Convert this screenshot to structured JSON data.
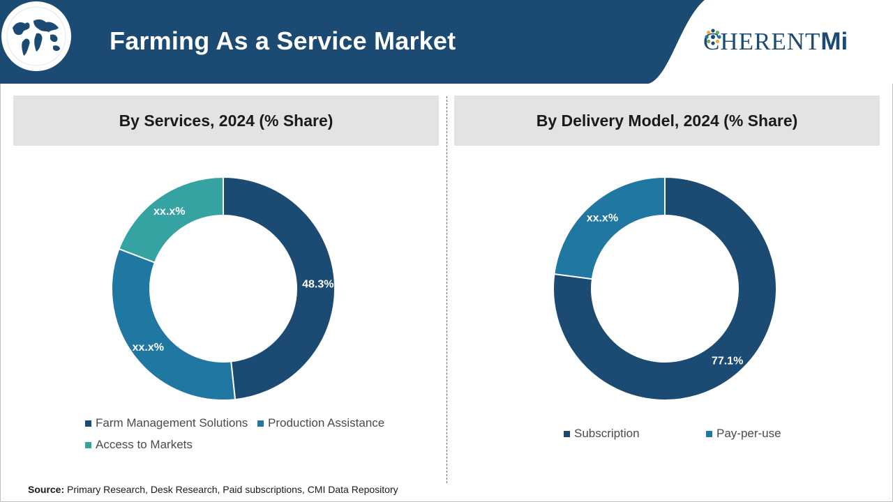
{
  "header": {
    "title": "Farming As a Service Market",
    "logo_main": "C",
    "logo_rest": "HERENT",
    "logo_suffix": "Mi",
    "colors": {
      "banner": "#1b4b72",
      "logo": "#1b4b72"
    }
  },
  "panels": [
    {
      "title": "By Services, 2024 (% Share)"
    },
    {
      "title": "By Delivery Model, 2024 (% Share)"
    }
  ],
  "chart_data": [
    {
      "type": "pie",
      "donut": true,
      "title": "By Services, 2024 (% Share)",
      "categories": [
        "Farm Management Solutions",
        "Production Assistance",
        "Access to Markets"
      ],
      "values": [
        48.3,
        32.5,
        19.2
      ],
      "labels": [
        "48.3%",
        "xx.x%",
        "xx.x%"
      ],
      "colors": [
        "#1b4b72",
        "#1f77a2",
        "#36a3a3"
      ],
      "legend": "bottom"
    },
    {
      "type": "pie",
      "donut": true,
      "title": "By Delivery Model, 2024 (% Share)",
      "categories": [
        "Subscription",
        "Pay-per-use"
      ],
      "values": [
        77.1,
        22.9
      ],
      "labels": [
        "77.1%",
        "xx.x%"
      ],
      "colors": [
        "#1b4b72",
        "#1f77a2"
      ],
      "legend": "bottom"
    }
  ],
  "source": {
    "label": "Source:",
    "text": "Primary Research, Desk Research, Paid subscriptions, CMI Data Repository"
  }
}
